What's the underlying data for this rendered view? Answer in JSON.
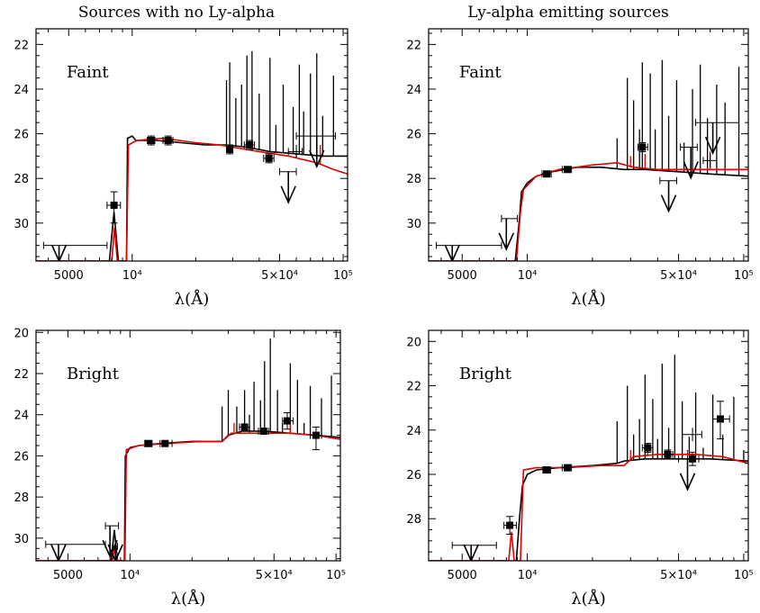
{
  "columns": [
    "Sources with no Ly-alpha",
    "Ly-alpha emitting sources"
  ],
  "chart_data": [
    {
      "type": "line",
      "label": "Faint",
      "xlabel": "λ(Å)",
      "log_x": true,
      "xlim": [
        3500,
        105000
      ],
      "ylim": [
        31.7,
        21.3
      ],
      "x_ticks": [
        {
          "v": 5000,
          "t": "5000"
        },
        {
          "v": 10000,
          "t": "10⁴"
        },
        {
          "v": 50000,
          "t": "5×10⁴"
        },
        {
          "v": 100000,
          "t": "10⁵"
        }
      ],
      "y_ticks": [
        22,
        24,
        26,
        28,
        30
      ],
      "black_sed": [
        [
          3500,
          31.7
        ],
        [
          7800,
          31.7
        ],
        [
          8200,
          29.5
        ],
        [
          8600,
          31.7
        ],
        [
          9400,
          31.7
        ],
        [
          9500,
          26.2
        ],
        [
          10000,
          26.1
        ],
        [
          10400,
          26.3
        ],
        [
          13000,
          26.3
        ],
        [
          17000,
          26.4
        ],
        [
          22000,
          26.5
        ],
        [
          28000,
          26.5
        ],
        [
          35000,
          26.6
        ],
        [
          45000,
          26.8
        ],
        [
          60000,
          26.9
        ],
        [
          80000,
          27.0
        ],
        [
          105000,
          27.0
        ]
      ],
      "red_sed": [
        [
          3500,
          31.7
        ],
        [
          8000,
          31.7
        ],
        [
          8250,
          30.2
        ],
        [
          8500,
          31.7
        ],
        [
          9400,
          31.7
        ],
        [
          9600,
          26.5
        ],
        [
          10500,
          26.3
        ],
        [
          14000,
          26.2
        ],
        [
          20000,
          26.4
        ],
        [
          26000,
          26.5
        ],
        [
          30000,
          26.6
        ],
        [
          40000,
          26.8
        ],
        [
          55000,
          27.0
        ],
        [
          75000,
          27.3
        ],
        [
          90000,
          27.6
        ],
        [
          105000,
          27.8
        ]
      ],
      "spikes_black": [
        [
          28000,
          23.6
        ],
        [
          29000,
          22.8
        ],
        [
          31000,
          24.4
        ],
        [
          33000,
          23.8
        ],
        [
          35000,
          22.5
        ],
        [
          37000,
          22.3
        ],
        [
          40000,
          24.2
        ],
        [
          45000,
          22.6
        ],
        [
          48000,
          25.6
        ],
        [
          52000,
          23.8
        ],
        [
          58000,
          24.8
        ],
        [
          62000,
          22.9
        ],
        [
          65000,
          25.0
        ],
        [
          70000,
          23.3
        ],
        [
          75000,
          22.4
        ],
        [
          80000,
          25.2
        ],
        [
          90000,
          23.4
        ]
      ],
      "spikes_red": [
        [
          47000,
          26.8
        ],
        [
          60000,
          26.9
        ],
        [
          78000,
          26.5
        ]
      ],
      "points": [
        [
          8200,
          29.2,
          7600,
          8800,
          28.6,
          30.0
        ],
        [
          12300,
          26.3,
          11800,
          12800,
          26.1,
          26.5
        ],
        [
          14800,
          26.3,
          14000,
          15600,
          26.1,
          26.5
        ],
        [
          29000,
          26.7,
          28000,
          30000,
          26.5,
          26.9
        ],
        [
          36000,
          26.5,
          34000,
          38000,
          26.3,
          26.7
        ],
        [
          44500,
          27.1,
          42000,
          47000,
          26.9,
          27.3
        ]
      ],
      "limits": [
        [
          4500,
          31.0,
          3800,
          7600
        ],
        [
          55000,
          27.7,
          50000,
          60000
        ],
        [
          75000,
          26.1,
          60000,
          92000
        ]
      ],
      "error_only": [
        [
          60000,
          26.8,
          55000,
          64000,
          26.5,
          27.1
        ]
      ]
    },
    {
      "type": "line",
      "label": "Faint",
      "xlabel": "λ(Å)",
      "log_x": true,
      "xlim": [
        3500,
        105000
      ],
      "ylim": [
        31.7,
        21.3
      ],
      "x_ticks": [
        {
          "v": 5000,
          "t": "5000"
        },
        {
          "v": 10000,
          "t": "10⁴"
        },
        {
          "v": 50000,
          "t": "5×10⁴"
        },
        {
          "v": 100000,
          "t": "10⁵"
        }
      ],
      "y_ticks": [
        22,
        24,
        26,
        28,
        30
      ],
      "black_sed": [
        [
          3500,
          31.7
        ],
        [
          8800,
          31.7
        ],
        [
          9200,
          29.8
        ],
        [
          9400,
          28.6
        ],
        [
          10000,
          28.2
        ],
        [
          11000,
          27.9
        ],
        [
          13000,
          27.7
        ],
        [
          17000,
          27.5
        ],
        [
          22000,
          27.5
        ],
        [
          28000,
          27.6
        ],
        [
          35000,
          27.6
        ],
        [
          50000,
          27.7
        ],
        [
          70000,
          27.8
        ],
        [
          105000,
          27.9
        ]
      ],
      "red_sed": [
        [
          3500,
          31.7
        ],
        [
          8900,
          31.7
        ],
        [
          9300,
          29.5
        ],
        [
          9600,
          28.5
        ],
        [
          11000,
          27.9
        ],
        [
          14000,
          27.6
        ],
        [
          20000,
          27.4
        ],
        [
          26000,
          27.3
        ],
        [
          31000,
          27.5
        ],
        [
          40000,
          27.6
        ],
        [
          60000,
          27.6
        ],
        [
          105000,
          27.6
        ]
      ],
      "spikes_black": [
        [
          26000,
          26.2
        ],
        [
          29000,
          23.5
        ],
        [
          31000,
          24.5
        ],
        [
          33000,
          25.8
        ],
        [
          34000,
          22.8
        ],
        [
          37000,
          23.3
        ],
        [
          39000,
          25.8
        ],
        [
          42000,
          22.7
        ],
        [
          45000,
          25.2
        ],
        [
          49000,
          23.6
        ],
        [
          53000,
          26.4
        ],
        [
          58000,
          24.0
        ],
        [
          63000,
          22.9
        ],
        [
          68000,
          25.3
        ],
        [
          75000,
          23.8
        ],
        [
          82000,
          24.6
        ],
        [
          95000,
          23.0
        ]
      ],
      "spikes_red": [
        [
          30000,
          27.0
        ],
        [
          35000,
          26.9
        ],
        [
          70000,
          26.9
        ]
      ],
      "points": [
        [
          12300,
          27.8,
          11700,
          12900,
          27.7,
          27.9
        ],
        [
          15300,
          27.6,
          14500,
          16000,
          27.5,
          27.7
        ],
        [
          34000,
          26.6,
          32500,
          36000,
          26.4,
          26.8
        ]
      ],
      "limits": [
        [
          4500,
          31.0,
          3800,
          7600
        ],
        [
          8000,
          29.8,
          7600,
          9000
        ],
        [
          45000,
          28.1,
          41000,
          49000
        ],
        [
          57000,
          26.6,
          51000,
          61000
        ],
        [
          72000,
          25.5,
          60000,
          95000
        ]
      ],
      "error_only": [
        [
          70000,
          27.2,
          65000,
          75000,
          26.8,
          27.5
        ]
      ]
    },
    {
      "type": "line",
      "label": "Bright",
      "xlabel": "λ(Å)",
      "log_x": true,
      "xlim": [
        3500,
        105000
      ],
      "ylim": [
        31.1,
        19.9
      ],
      "x_ticks": [
        {
          "v": 5000,
          "t": "5000"
        },
        {
          "v": 10000,
          "t": "10⁴"
        },
        {
          "v": 50000,
          "t": "5×10⁴"
        },
        {
          "v": 100000,
          "t": "10⁵"
        }
      ],
      "y_ticks": [
        20,
        22,
        24,
        26,
        28,
        30
      ],
      "black_sed": [
        [
          3500,
          31.1
        ],
        [
          8100,
          31.1
        ],
        [
          8400,
          29.6
        ],
        [
          8700,
          31.1
        ],
        [
          9400,
          31.1
        ],
        [
          9500,
          26.0
        ],
        [
          10000,
          25.6
        ],
        [
          11000,
          25.5
        ],
        [
          14000,
          25.4
        ],
        [
          20000,
          25.3
        ],
        [
          28000,
          25.3
        ],
        [
          30000,
          25.0
        ],
        [
          35000,
          24.8
        ],
        [
          45000,
          24.8
        ],
        [
          60000,
          24.9
        ],
        [
          80000,
          25.0
        ],
        [
          105000,
          25.1
        ]
      ],
      "red_sed": [
        [
          3500,
          31.1
        ],
        [
          8200,
          31.1
        ],
        [
          8450,
          30.4
        ],
        [
          8700,
          31.1
        ],
        [
          9450,
          31.1
        ],
        [
          9600,
          25.7
        ],
        [
          11000,
          25.5
        ],
        [
          15000,
          25.4
        ],
        [
          22000,
          25.3
        ],
        [
          28000,
          25.3
        ],
        [
          31000,
          24.9
        ],
        [
          40000,
          24.9
        ],
        [
          60000,
          24.9
        ],
        [
          80000,
          25.0
        ],
        [
          105000,
          25.2
        ]
      ],
      "spikes_black": [
        [
          28000,
          23.6
        ],
        [
          30000,
          22.8
        ],
        [
          33000,
          23.6
        ],
        [
          36000,
          22.8
        ],
        [
          38000,
          24.0
        ],
        [
          40000,
          22.4
        ],
        [
          43000,
          23.3
        ],
        [
          45000,
          21.4
        ],
        [
          48000,
          20.3
        ],
        [
          52000,
          22.8
        ],
        [
          55000,
          24.4
        ],
        [
          60000,
          21.5
        ],
        [
          65000,
          22.3
        ],
        [
          70000,
          24.4
        ],
        [
          75000,
          22.6
        ],
        [
          85000,
          23.2
        ],
        [
          95000,
          22.1
        ]
      ],
      "spikes_red": [
        [
          32000,
          24.4
        ],
        [
          38000,
          24.6
        ],
        [
          60000,
          24.2
        ]
      ],
      "points": [
        [
          12300,
          25.4,
          11800,
          12800,
          25.3,
          25.5
        ],
        [
          14800,
          25.4,
          14000,
          16000,
          25.3,
          25.5
        ],
        [
          36000,
          24.6,
          34000,
          38000,
          24.5,
          24.7
        ],
        [
          44500,
          24.8,
          42000,
          47000,
          24.7,
          24.9
        ],
        [
          58000,
          24.3,
          55000,
          62000,
          23.9,
          24.7
        ],
        [
          80000,
          25.0,
          75000,
          85000,
          24.6,
          25.7
        ]
      ],
      "limits": [
        [
          4500,
          30.3,
          3900,
          7600
        ],
        [
          8000,
          29.4,
          7600,
          8800
        ],
        [
          8500,
          30.4,
          8300,
          8700
        ]
      ],
      "error_only": []
    },
    {
      "type": "line",
      "label": "Bright",
      "xlabel": "λ(Å)",
      "log_x": true,
      "xlim": [
        3500,
        105000
      ],
      "ylim": [
        29.9,
        19.5
      ],
      "x_ticks": [
        {
          "v": 5000,
          "t": "5000"
        },
        {
          "v": 10000,
          "t": "10⁴"
        },
        {
          "v": 50000,
          "t": "5×10⁴"
        },
        {
          "v": 100000,
          "t": "10⁵"
        }
      ],
      "y_ticks": [
        20,
        22,
        24,
        26,
        28
      ],
      "black_sed": [
        [
          3500,
          29.9
        ],
        [
          8900,
          29.9
        ],
        [
          9200,
          28.0
        ],
        [
          9500,
          26.5
        ],
        [
          10000,
          26.0
        ],
        [
          11000,
          25.8
        ],
        [
          14000,
          25.7
        ],
        [
          20000,
          25.6
        ],
        [
          26000,
          25.5
        ],
        [
          28000,
          25.4
        ],
        [
          35000,
          25.3
        ],
        [
          50000,
          25.3
        ],
        [
          70000,
          25.3
        ],
        [
          105000,
          25.4
        ]
      ],
      "red_sed": [
        [
          3500,
          29.9
        ],
        [
          8200,
          29.9
        ],
        [
          8450,
          28.6
        ],
        [
          8700,
          29.9
        ],
        [
          9300,
          29.9
        ],
        [
          9600,
          25.8
        ],
        [
          11000,
          25.7
        ],
        [
          15000,
          25.7
        ],
        [
          22000,
          25.6
        ],
        [
          28000,
          25.6
        ],
        [
          31000,
          25.2
        ],
        [
          40000,
          25.1
        ],
        [
          60000,
          25.1
        ],
        [
          80000,
          25.2
        ],
        [
          105000,
          25.5
        ]
      ],
      "spikes_black": [
        [
          26000,
          23.6
        ],
        [
          29000,
          22.0
        ],
        [
          31000,
          24.2
        ],
        [
          33000,
          23.5
        ],
        [
          35000,
          21.5
        ],
        [
          38000,
          22.6
        ],
        [
          40000,
          24.4
        ],
        [
          42000,
          21.0
        ],
        [
          45000,
          23.9
        ],
        [
          48000,
          20.6
        ],
        [
          52000,
          22.7
        ],
        [
          56000,
          24.3
        ],
        [
          60000,
          22.3
        ],
        [
          65000,
          24.8
        ],
        [
          72000,
          22.4
        ],
        [
          80000,
          24.2
        ],
        [
          90000,
          22.5
        ],
        [
          100000,
          24.9
        ]
      ],
      "spikes_red": [
        [
          30000,
          24.9
        ],
        [
          36000,
          24.8
        ],
        [
          55000,
          24.9
        ]
      ],
      "points": [
        [
          8300,
          28.3,
          7800,
          8900,
          27.9,
          28.7
        ],
        [
          12300,
          25.8,
          11800,
          12800,
          25.7,
          25.9
        ],
        [
          15300,
          25.7,
          14500,
          16000,
          25.6,
          25.8
        ],
        [
          36000,
          24.8,
          34000,
          38000,
          24.6,
          25.0
        ],
        [
          44500,
          25.1,
          42000,
          47000,
          24.9,
          25.3
        ],
        [
          58000,
          25.3,
          55000,
          62000,
          25.0,
          25.6
        ],
        [
          78000,
          23.5,
          72000,
          86000,
          22.7,
          24.4
        ]
      ],
      "limits": [
        [
          5500,
          29.2,
          4500,
          7200
        ],
        [
          55000,
          25.3,
          50000,
          62000
        ]
      ],
      "error_only": [
        [
          58000,
          24.2,
          52000,
          64000,
          23.9,
          24.5
        ]
      ]
    }
  ]
}
